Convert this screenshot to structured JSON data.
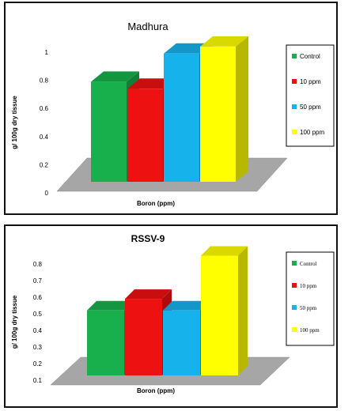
{
  "chart_data": [
    {
      "type": "bar",
      "title": "Madhura",
      "xlabel": "Boron (ppm)",
      "ylabel": "g/ 100g dry tissue",
      "ylim": [
        0,
        1
      ],
      "yticks": [
        "0",
        "0.2",
        "0.4",
        "0.6",
        "0.8",
        "1"
      ],
      "categories": [
        "Control",
        "10 ppm",
        "50 ppm",
        "100 ppm"
      ],
      "values": [
        0.79,
        0.74,
        0.99,
        1.04
      ],
      "colors": [
        "#18b04c",
        "#ee1111",
        "#16b2ec",
        "#ffff00"
      ],
      "legend_position": "right"
    },
    {
      "type": "bar",
      "title": "RSSV-9",
      "xlabel": "Boron (ppm)",
      "ylabel": "g/ 100g dry tissue",
      "ylim": [
        0.1,
        0.8
      ],
      "yticks": [
        "0.1",
        "0.2",
        "0.3",
        "0.4",
        "0.5",
        "0.6",
        "0.7",
        "0.8"
      ],
      "categories": [
        "Control",
        "10 ppm",
        "50 ppm",
        "100 ppm"
      ],
      "values": [
        0.52,
        0.59,
        0.52,
        0.85
      ],
      "colors": [
        "#18b04c",
        "#ee1111",
        "#16b2ec",
        "#ffff00"
      ],
      "legend_position": "right"
    }
  ]
}
